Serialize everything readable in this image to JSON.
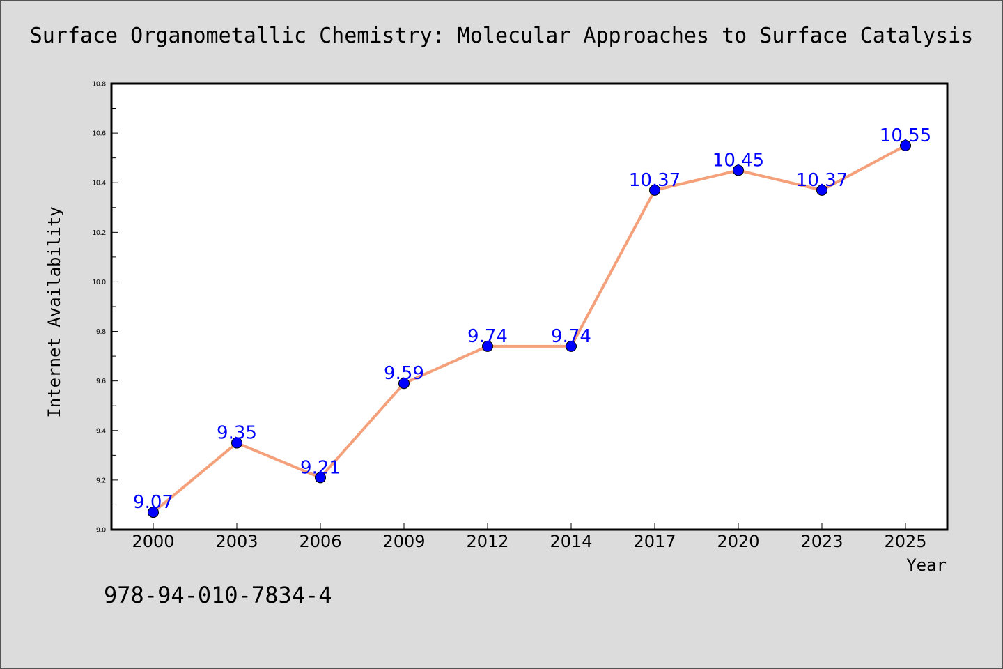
{
  "chart_data": {
    "type": "line",
    "title": "Surface Organometallic Chemistry: Molecular Approaches to Surface Catalysis",
    "xlabel": "Year",
    "ylabel": "Internet Availability",
    "categories": [
      "2000",
      "2003",
      "2006",
      "2009",
      "2012",
      "2014",
      "2017",
      "2020",
      "2023",
      "2025"
    ],
    "series": [
      {
        "values": [
          9.07,
          9.35,
          9.21,
          9.59,
          9.74,
          9.74,
          10.37,
          10.45,
          10.37,
          10.55
        ],
        "data_labels": [
          "9.07",
          "9.35",
          "9.21",
          "9.59",
          "9.74",
          "9.74",
          "10.37",
          "10.45",
          "10.37",
          "10.55"
        ]
      }
    ],
    "ylim": [
      9.0,
      10.8
    ],
    "yticks": [
      "9.0",
      "9.2",
      "9.4",
      "9.6",
      "9.8",
      "10.0",
      "10.2",
      "10.4",
      "10.6",
      "10.8"
    ],
    "grid": false,
    "legend": "none",
    "colors": {
      "line": "#f4a07a",
      "marker": "#0000ff",
      "label": "#0000ff",
      "background": "#dcdcdc",
      "plot_area": "#ffffff"
    }
  },
  "footer": {
    "isbn": "978-94-010-7834-4"
  }
}
